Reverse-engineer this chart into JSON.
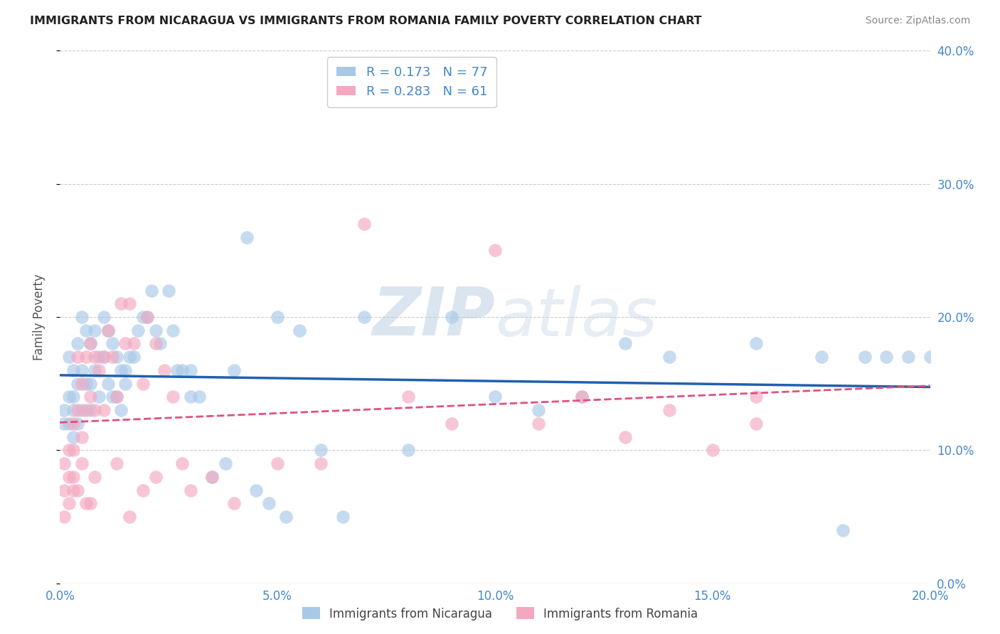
{
  "title": "IMMIGRANTS FROM NICARAGUA VS IMMIGRANTS FROM ROMANIA FAMILY POVERTY CORRELATION CHART",
  "source": "Source: ZipAtlas.com",
  "xlim": [
    0.0,
    0.2
  ],
  "ylim": [
    0.0,
    0.4
  ],
  "ylabel": "Family Poverty",
  "legend_label1": "Immigrants from Nicaragua",
  "legend_label2": "Immigrants from Romania",
  "R1": 0.173,
  "N1": 77,
  "R2": 0.283,
  "N2": 61,
  "color1": "#a8c8e8",
  "color2": "#f4a8c0",
  "line_color1": "#2060b0",
  "line_color2": "#e05080",
  "tick_color": "#4488cc",
  "watermark_color": "#d0dde8",
  "nicaragua_x": [
    0.001,
    0.001,
    0.002,
    0.002,
    0.002,
    0.003,
    0.003,
    0.003,
    0.003,
    0.004,
    0.004,
    0.004,
    0.005,
    0.005,
    0.005,
    0.006,
    0.006,
    0.007,
    0.007,
    0.007,
    0.008,
    0.008,
    0.009,
    0.009,
    0.01,
    0.01,
    0.011,
    0.011,
    0.012,
    0.012,
    0.013,
    0.013,
    0.014,
    0.014,
    0.015,
    0.015,
    0.016,
    0.017,
    0.018,
    0.019,
    0.02,
    0.021,
    0.022,
    0.023,
    0.025,
    0.026,
    0.027,
    0.028,
    0.03,
    0.03,
    0.032,
    0.035,
    0.038,
    0.04,
    0.043,
    0.05,
    0.055,
    0.06,
    0.065,
    0.07,
    0.08,
    0.09,
    0.1,
    0.11,
    0.12,
    0.13,
    0.14,
    0.16,
    0.175,
    0.18,
    0.185,
    0.19,
    0.195,
    0.2,
    0.045,
    0.048,
    0.052
  ],
  "nicaragua_y": [
    0.13,
    0.12,
    0.17,
    0.14,
    0.12,
    0.16,
    0.14,
    0.13,
    0.11,
    0.18,
    0.15,
    0.12,
    0.2,
    0.16,
    0.13,
    0.19,
    0.15,
    0.18,
    0.15,
    0.13,
    0.19,
    0.16,
    0.17,
    0.14,
    0.2,
    0.17,
    0.19,
    0.15,
    0.18,
    0.14,
    0.17,
    0.14,
    0.16,
    0.13,
    0.15,
    0.16,
    0.17,
    0.17,
    0.19,
    0.2,
    0.2,
    0.22,
    0.19,
    0.18,
    0.22,
    0.19,
    0.16,
    0.16,
    0.16,
    0.14,
    0.14,
    0.08,
    0.09,
    0.16,
    0.26,
    0.2,
    0.19,
    0.1,
    0.05,
    0.2,
    0.1,
    0.2,
    0.14,
    0.13,
    0.14,
    0.18,
    0.17,
    0.18,
    0.17,
    0.04,
    0.17,
    0.17,
    0.17,
    0.17,
    0.07,
    0.06,
    0.05
  ],
  "romania_x": [
    0.001,
    0.001,
    0.001,
    0.002,
    0.002,
    0.002,
    0.003,
    0.003,
    0.003,
    0.004,
    0.004,
    0.005,
    0.005,
    0.006,
    0.006,
    0.007,
    0.007,
    0.008,
    0.008,
    0.009,
    0.01,
    0.01,
    0.011,
    0.012,
    0.013,
    0.014,
    0.015,
    0.016,
    0.017,
    0.019,
    0.02,
    0.022,
    0.024,
    0.026,
    0.028,
    0.03,
    0.035,
    0.04,
    0.05,
    0.06,
    0.07,
    0.08,
    0.09,
    0.1,
    0.11,
    0.12,
    0.13,
    0.14,
    0.15,
    0.16,
    0.013,
    0.022,
    0.019,
    0.016,
    0.008,
    0.005,
    0.007,
    0.16,
    0.003,
    0.006,
    0.004
  ],
  "romania_y": [
    0.09,
    0.07,
    0.05,
    0.1,
    0.08,
    0.06,
    0.12,
    0.1,
    0.07,
    0.17,
    0.13,
    0.15,
    0.11,
    0.17,
    0.13,
    0.18,
    0.14,
    0.17,
    0.13,
    0.16,
    0.17,
    0.13,
    0.19,
    0.17,
    0.14,
    0.21,
    0.18,
    0.21,
    0.18,
    0.15,
    0.2,
    0.18,
    0.16,
    0.14,
    0.09,
    0.07,
    0.08,
    0.06,
    0.09,
    0.09,
    0.27,
    0.14,
    0.12,
    0.25,
    0.12,
    0.14,
    0.11,
    0.13,
    0.1,
    0.14,
    0.09,
    0.08,
    0.07,
    0.05,
    0.08,
    0.09,
    0.06,
    0.12,
    0.08,
    0.06,
    0.07
  ],
  "xticks": [
    0.0,
    0.05,
    0.1,
    0.15,
    0.2
  ],
  "yticks": [
    0.0,
    0.1,
    0.2,
    0.3,
    0.4
  ]
}
